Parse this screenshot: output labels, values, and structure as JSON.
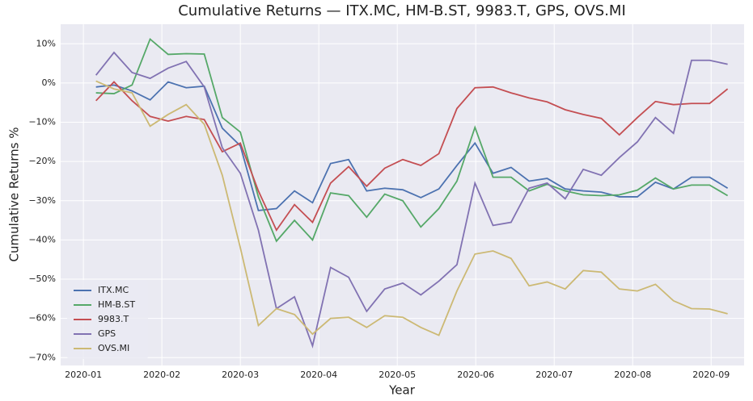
{
  "chart_data": {
    "type": "line",
    "title": "Cumulative Returns — ITX.MC, HM-B.ST, 9983.T, GPS, OVS.MI",
    "xlabel": "Year",
    "ylabel": "Cumulative Returns %",
    "x": [
      1.16,
      1.39,
      1.62,
      1.85,
      2.08,
      2.31,
      2.54,
      2.77,
      3.0,
      3.23,
      3.46,
      3.69,
      3.92,
      4.15,
      4.38,
      4.61,
      4.84,
      5.07,
      5.3,
      5.53,
      5.76,
      5.99,
      6.22,
      6.45,
      6.68,
      6.91,
      7.14,
      7.37,
      7.6,
      7.83,
      8.06,
      8.29,
      8.52,
      8.75,
      8.98,
      9.21
    ],
    "series": [
      {
        "name": "ITX.MC",
        "color": "#4c72b0",
        "values": [
          -1,
          -0.5,
          -2,
          -4.3,
          0.3,
          -1.2,
          -0.8,
          -11.5,
          -16,
          -32.5,
          -32,
          -27.5,
          -30.5,
          -20.5,
          -19.5,
          -27.5,
          -26.8,
          -27.2,
          -29.2,
          -27,
          -21,
          -15.3,
          -23,
          -21.5,
          -25,
          -24.3,
          -27,
          -27.5,
          -27.8,
          -29,
          -29,
          -25.3,
          -27,
          -24,
          -24,
          -26.8
        ]
      },
      {
        "name": "HM-B.ST",
        "color": "#55a868",
        "values": [
          -2.5,
          -2.7,
          -0.5,
          11.2,
          7.3,
          7.5,
          7.4,
          -8.8,
          -12.5,
          -29,
          -40.3,
          -35,
          -40,
          -28,
          -28.7,
          -34.2,
          -28.3,
          -30,
          -36.7,
          -32,
          -25,
          -11.3,
          -24,
          -24,
          -27.5,
          -25.8,
          -27.5,
          -28.5,
          -28.7,
          -28.5,
          -27.3,
          -24.2,
          -27,
          -26,
          -26,
          -28.7
        ]
      },
      {
        "name": "9983.T",
        "color": "#c44e52",
        "values": [
          -4.5,
          0.3,
          -4.5,
          -8.5,
          -9.7,
          -8.5,
          -9.3,
          -17.5,
          -15.3,
          -27.5,
          -37.5,
          -31,
          -35.5,
          -25.5,
          -21.3,
          -26.3,
          -21.7,
          -19.5,
          -21,
          -18,
          -6.5,
          -1.2,
          -1,
          -2.5,
          -3.8,
          -4.8,
          -6.8,
          -8,
          -9,
          -13.2,
          -8.8,
          -4.7,
          -5.5,
          -5.2,
          -5.2,
          -1.5
        ]
      },
      {
        "name": "GPS",
        "color": "#8172b2",
        "values": [
          2,
          7.8,
          2.7,
          1.2,
          3.8,
          5.5,
          -1,
          -16.5,
          -23,
          -37.5,
          -57.5,
          -54.5,
          -67,
          -47,
          -49.5,
          -58.2,
          -52.5,
          -51,
          -54,
          -50.5,
          -46.3,
          -25.5,
          -36.3,
          -35.5,
          -26.8,
          -25.5,
          -29.5,
          -22,
          -23.5,
          -19,
          -15,
          -8.8,
          -12.8,
          5.8,
          5.8,
          4.8
        ]
      },
      {
        "name": "OVS.MI",
        "color": "#ccb974",
        "values": [
          0.5,
          -1.5,
          -2.5,
          -11,
          -8,
          -5.5,
          -10.5,
          -23.5,
          -42,
          -61.8,
          -57.5,
          -59,
          -64,
          -60,
          -59.7,
          -62.3,
          -59.3,
          -59.7,
          -62.3,
          -64.3,
          -53,
          -43.6,
          -42.8,
          -44.7,
          -51.7,
          -50.7,
          -52.5,
          -47.8,
          -48.2,
          -52.5,
          -53,
          -51.3,
          -55.5,
          -57.5,
          -57.6,
          -58.8
        ]
      }
    ],
    "xlim": [
      0.71,
      9.42
    ],
    "xticks": [
      {
        "value": 1,
        "label": "2020-01"
      },
      {
        "value": 2,
        "label": "2020-02"
      },
      {
        "value": 3,
        "label": "2020-03"
      },
      {
        "value": 4,
        "label": "2020-04"
      },
      {
        "value": 5,
        "label": "2020-05"
      },
      {
        "value": 6,
        "label": "2020-06"
      },
      {
        "value": 7,
        "label": "2020-07"
      },
      {
        "value": 8,
        "label": "2020-08"
      },
      {
        "value": 9,
        "label": "2020-09"
      }
    ],
    "ylim": [
      -72,
      15
    ],
    "yticks": [
      {
        "value": 10,
        "label": "10%"
      },
      {
        "value": 0,
        "label": "0%"
      },
      {
        "value": -10,
        "label": "−10%"
      },
      {
        "value": -20,
        "label": "−20%"
      },
      {
        "value": -30,
        "label": "−30%"
      },
      {
        "value": -40,
        "label": "−40%"
      },
      {
        "value": -50,
        "label": "−50%"
      },
      {
        "value": -60,
        "label": "−60%"
      },
      {
        "value": -70,
        "label": "−70%"
      }
    ],
    "grid": true,
    "legend": "lower left"
  }
}
